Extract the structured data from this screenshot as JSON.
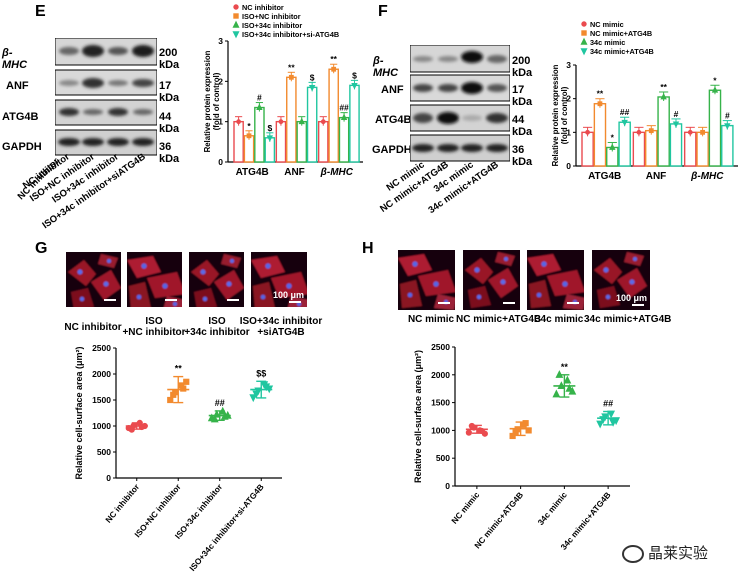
{
  "panels": {
    "E": "E",
    "F": "F",
    "G": "G",
    "H": "H"
  },
  "colors": {
    "red": "#ea4b4f",
    "orange": "#f28a2e",
    "green": "#36b34a",
    "teal": "#20c6a0"
  },
  "E": {
    "blot_rows": [
      {
        "name": "β-MHC",
        "kda": "200 kDa",
        "italic": true
      },
      {
        "name": "ANF",
        "kda": "17 kDa",
        "italic": false
      },
      {
        "name": "ATG4B",
        "kda": "44 kDa",
        "italic": false
      },
      {
        "name": "GAPDH",
        "kda": "36 kDa",
        "italic": false
      }
    ],
    "lanes": [
      "NC inhibitor",
      "ISO+NC inhibitor",
      "ISO+34c inhibitor",
      "ISO+34c inhibitor+siATG4B"
    ]
  },
  "F": {
    "blot_rows": [
      {
        "name": "β-MHC",
        "kda": "200 kDa",
        "italic": true
      },
      {
        "name": "ANF",
        "kda": "17 kDa",
        "italic": false
      },
      {
        "name": "ATG4B",
        "kda": "44 kDa",
        "italic": false
      },
      {
        "name": "GAPDH",
        "kda": "36 kDa",
        "italic": false
      }
    ],
    "lanes": [
      "NC mimic",
      "NC mimic+ATG4B",
      "34c mimic",
      "34c mimic+ATG4B"
    ]
  },
  "G": {
    "image_labels": [
      "NC inhibitor",
      "ISO\n+NC inhibitor",
      "ISO\n+34c inhibitor",
      "ISO+34c inhibitor\n+siATG4B"
    ],
    "scale_label": "100 μm"
  },
  "H": {
    "image_labels": [
      "NC mimic",
      "NC mimic+ATG4B",
      "34c mimic",
      "34c mimic+ATG4B"
    ],
    "scale_label": "100 μm"
  },
  "chart_data": [
    {
      "id": "E-bar",
      "type": "bar",
      "legend": [
        "NC inhibitor",
        "ISO+NC inhibitor",
        "ISO+34c inhibitor",
        "ISO+34c inhibitor+si-ATG4B"
      ],
      "ylabel": "Relative protein expression\n(fold of control)",
      "ylim": [
        0,
        3
      ],
      "yticks": [
        0,
        1,
        2,
        3
      ],
      "categories": [
        "ATG4B",
        "ANF",
        "β-MHC"
      ],
      "series": [
        {
          "name": "NC inhibitor",
          "values": [
            1.0,
            1.0,
            1.0
          ]
        },
        {
          "name": "ISO+NC inhibitor",
          "values": [
            0.65,
            2.1,
            2.3
          ]
        },
        {
          "name": "ISO+34c inhibitor",
          "values": [
            1.35,
            1.0,
            1.1
          ]
        },
        {
          "name": "ISO+34c inhibitor+si-ATG4B",
          "values": [
            0.6,
            1.85,
            1.9
          ]
        }
      ],
      "annotations": [
        [
          "",
          "*",
          "#",
          "$"
        ],
        [
          "",
          "**",
          "",
          "$"
        ],
        [
          "",
          "**",
          "##",
          "$"
        ]
      ]
    },
    {
      "id": "F-bar",
      "type": "bar",
      "legend": [
        "NC mimic",
        "NC mimic+ATG4B",
        "34c mimic",
        "34c mimic+ATG4B"
      ],
      "ylabel": "Relative protein expression\n(fold of control)",
      "ylim": [
        0,
        3
      ],
      "yticks": [
        0,
        1,
        2,
        3
      ],
      "categories": [
        "ATG4B",
        "ANF",
        "β-MHC"
      ],
      "series": [
        {
          "name": "NC mimic",
          "values": [
            1.0,
            1.0,
            1.0
          ]
        },
        {
          "name": "NC mimic+ATG4B",
          "values": [
            1.85,
            1.05,
            1.0
          ]
        },
        {
          "name": "34c mimic",
          "values": [
            0.55,
            2.05,
            2.25
          ]
        },
        {
          "name": "34c mimic+ATG4B",
          "values": [
            1.3,
            1.25,
            1.2
          ]
        }
      ],
      "annotations": [
        [
          "",
          "**",
          "*",
          "##"
        ],
        [
          "",
          "",
          "**",
          "#"
        ],
        [
          "",
          "",
          "*",
          "#"
        ]
      ]
    },
    {
      "id": "G-scatter",
      "type": "scatter",
      "ylabel": "Relative cell-surface area (μm²)",
      "ylim": [
        0,
        2500
      ],
      "yticks": [
        0,
        500,
        1000,
        1500,
        2000,
        2500
      ],
      "categories": [
        "NC inhibitor",
        "ISO+NC inhibitor",
        "ISO+34c inhibitor",
        "ISO+34c inhibitor+si-ATG4B"
      ],
      "points": [
        [
          960,
          1010,
          1060,
          1000,
          930,
          980
        ],
        [
          1500,
          1650,
          1780,
          1850,
          1600,
          1720
        ],
        [
          1150,
          1220,
          1280,
          1200,
          1130,
          1180
        ],
        [
          1550,
          1680,
          1800,
          1720,
          1620,
          1760
        ]
      ],
      "means": [
        1000,
        1700,
        1200,
        1700
      ],
      "sds": [
        60,
        250,
        90,
        160
      ],
      "annotations": [
        "",
        "**",
        "##",
        "$$"
      ]
    },
    {
      "id": "H-scatter",
      "type": "scatter",
      "ylabel": "Relative cell-surface area (μm²)",
      "ylim": [
        0,
        2500
      ],
      "yticks": [
        0,
        500,
        1000,
        1500,
        2000,
        2500
      ],
      "categories": [
        "NC mimic",
        "NC mimic+ATG4B",
        "34c mimic",
        "34c mimic+ATG4B"
      ],
      "points": [
        [
          960,
          1050,
          1000,
          940,
          1080,
          990
        ],
        [
          900,
          1020,
          1100,
          1000,
          960,
          1130
        ],
        [
          1650,
          1800,
          1900,
          1700,
          2000,
          1750
        ],
        [
          1120,
          1250,
          1300,
          1180,
          1200,
          1150
        ]
      ],
      "means": [
        1020,
        1030,
        1800,
        1220
      ],
      "sds": [
        70,
        120,
        200,
        120
      ],
      "annotations": [
        "",
        "",
        "**",
        "##"
      ]
    }
  ],
  "watermark": "晶莱实验"
}
